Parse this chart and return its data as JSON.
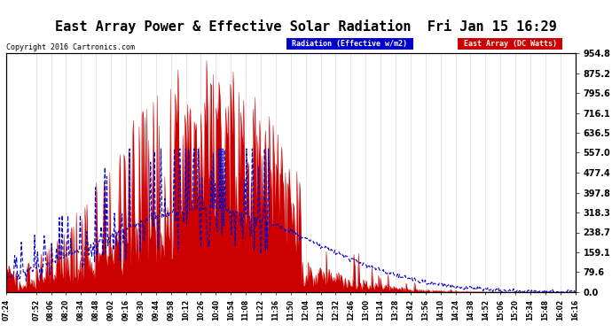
{
  "title": "East Array Power & Effective Solar Radiation  Fri Jan 15 16:29",
  "copyright": "Copyright 2016 Cartronics.com",
  "legend_items": [
    "Radiation (Effective w/m2)",
    "East Array (DC Watts)"
  ],
  "legend_colors": [
    "#0000cc",
    "#cc0000"
  ],
  "y_max": 954.8,
  "y_ticks": [
    0.0,
    79.6,
    159.1,
    238.7,
    318.3,
    397.8,
    477.4,
    557.0,
    636.5,
    716.1,
    795.6,
    875.2,
    954.8
  ],
  "background_color": "#ffffff",
  "plot_bg_color": "#ffffff",
  "grid_color": "#aaaaaa",
  "red_color": "#cc0000",
  "blue_color": "#0000cc",
  "x_start": "07:24",
  "x_end": "16:16",
  "x_tick_labels": [
    "07:24",
    "07:52",
    "08:06",
    "08:20",
    "08:34",
    "08:48",
    "09:02",
    "09:16",
    "09:30",
    "09:44",
    "09:58",
    "10:12",
    "10:26",
    "10:40",
    "10:54",
    "11:08",
    "11:22",
    "11:36",
    "11:50",
    "12:04",
    "12:18",
    "12:32",
    "12:46",
    "13:00",
    "13:14",
    "13:28",
    "13:42",
    "13:56",
    "14:10",
    "14:24",
    "14:38",
    "14:52",
    "15:06",
    "15:20",
    "15:34",
    "15:48",
    "16:02",
    "16:16"
  ]
}
